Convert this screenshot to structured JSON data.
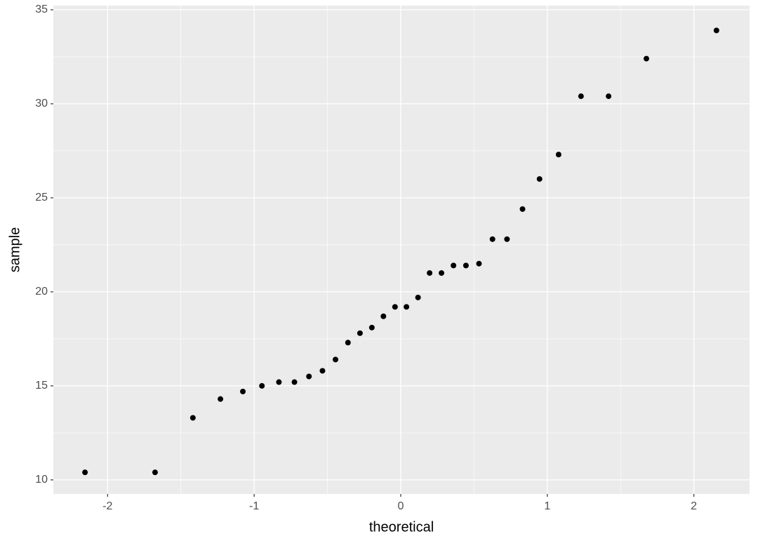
{
  "chart_data": {
    "type": "scatter",
    "x_label": "theoretical",
    "y_label": "sample",
    "x": [
      -2.154,
      -1.676,
      -1.418,
      -1.23,
      -1.077,
      -0.947,
      -0.831,
      -0.725,
      -0.626,
      -0.534,
      -0.445,
      -0.36,
      -0.278,
      -0.197,
      -0.118,
      -0.039,
      0.039,
      0.118,
      0.197,
      0.278,
      0.36,
      0.445,
      0.534,
      0.626,
      0.725,
      0.831,
      0.947,
      1.077,
      1.23,
      1.418,
      1.676,
      2.154
    ],
    "values": [
      10.4,
      10.4,
      13.3,
      14.3,
      14.7,
      15.0,
      15.2,
      15.2,
      15.5,
      15.8,
      16.4,
      17.3,
      17.8,
      18.1,
      18.7,
      19.2,
      19.2,
      19.7,
      21.0,
      21.0,
      21.4,
      21.4,
      21.5,
      22.8,
      22.8,
      24.4,
      26.0,
      27.3,
      30.4,
      30.4,
      32.4,
      33.9
    ],
    "color": "#000000",
    "xlim": [
      -2.37,
      2.38
    ],
    "ylim": [
      9.25,
      35.22
    ],
    "xticks": [
      -2,
      -1,
      0,
      1,
      2
    ],
    "yticks": [
      10,
      15,
      20,
      25,
      30,
      35
    ],
    "grid": true
  }
}
